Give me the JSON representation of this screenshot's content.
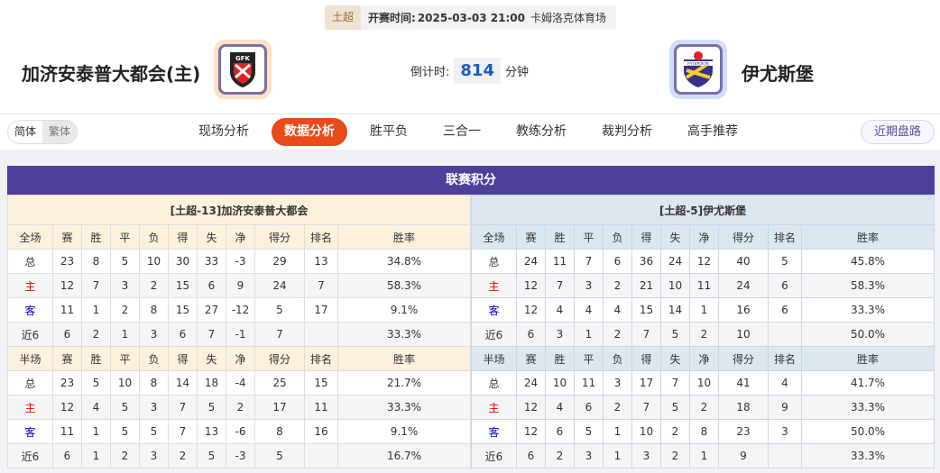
{
  "match": {
    "league": "土超",
    "time_label": "开赛时间:",
    "time": "2025-03-03 21:00",
    "venue": "卡姆洛克体育场"
  },
  "home": {
    "name": "加济安泰普大都会(主)",
    "logo_text": "GFK"
  },
  "away": {
    "name": "伊尤斯堡",
    "logo_text": "EYUPSPOR"
  },
  "countdown": {
    "label": "倒计时:",
    "value": "814",
    "unit": "分钟"
  },
  "lang": {
    "simplified": "简体",
    "traditional": "繁体"
  },
  "tabs": [
    "现场分析",
    "数据分析",
    "胜平负",
    "三合一",
    "教练分析",
    "裁判分析",
    "高手推荐"
  ],
  "active_tab": "数据分析",
  "recent_button": "近期盘路",
  "section_title": "联赛积分",
  "columns_full": [
    "全场",
    "赛",
    "胜",
    "平",
    "负",
    "得",
    "失",
    "净",
    "得分",
    "排名",
    "胜率"
  ],
  "columns_half": [
    "半场",
    "赛",
    "胜",
    "平",
    "负",
    "得",
    "失",
    "净",
    "得分",
    "排名",
    "胜率"
  ],
  "tables": [
    {
      "caption": "[土超-13]加济安泰普大都会",
      "full": [
        [
          "总",
          "23",
          "8",
          "5",
          "10",
          "30",
          "33",
          "-3",
          "29",
          "13",
          "34.8%"
        ],
        [
          "主",
          "12",
          "7",
          "3",
          "2",
          "15",
          "6",
          "9",
          "24",
          "7",
          "58.3%"
        ],
        [
          "客",
          "11",
          "1",
          "2",
          "8",
          "15",
          "27",
          "-12",
          "5",
          "17",
          "9.1%"
        ],
        [
          "近6",
          "6",
          "2",
          "1",
          "3",
          "6",
          "7",
          "-1",
          "7",
          "",
          "33.3%"
        ]
      ],
      "half": [
        [
          "总",
          "23",
          "5",
          "10",
          "8",
          "14",
          "18",
          "-4",
          "25",
          "15",
          "21.7%"
        ],
        [
          "主",
          "12",
          "4",
          "5",
          "3",
          "7",
          "5",
          "2",
          "17",
          "11",
          "33.3%"
        ],
        [
          "客",
          "11",
          "1",
          "5",
          "5",
          "7",
          "13",
          "-6",
          "8",
          "16",
          "9.1%"
        ],
        [
          "近6",
          "6",
          "1",
          "2",
          "3",
          "2",
          "5",
          "-3",
          "5",
          "",
          "16.7%"
        ]
      ]
    },
    {
      "caption": "[土超-5]伊尤斯堡",
      "full": [
        [
          "总",
          "24",
          "11",
          "7",
          "6",
          "36",
          "24",
          "12",
          "40",
          "5",
          "45.8%"
        ],
        [
          "主",
          "12",
          "7",
          "3",
          "2",
          "21",
          "10",
          "11",
          "24",
          "6",
          "58.3%"
        ],
        [
          "客",
          "12",
          "4",
          "4",
          "4",
          "15",
          "14",
          "1",
          "16",
          "6",
          "33.3%"
        ],
        [
          "近6",
          "6",
          "3",
          "1",
          "2",
          "7",
          "5",
          "2",
          "10",
          "",
          "50.0%"
        ]
      ],
      "half": [
        [
          "总",
          "24",
          "10",
          "11",
          "3",
          "17",
          "7",
          "10",
          "41",
          "4",
          "41.7%"
        ],
        [
          "主",
          "12",
          "4",
          "6",
          "2",
          "7",
          "5",
          "2",
          "18",
          "9",
          "33.3%"
        ],
        [
          "客",
          "12",
          "6",
          "5",
          "1",
          "10",
          "2",
          "8",
          "23",
          "3",
          "50.0%"
        ],
        [
          "近6",
          "6",
          "2",
          "3",
          "1",
          "3",
          "2",
          "1",
          "9",
          "",
          "33.3%"
        ]
      ]
    }
  ],
  "colors": {
    "accent": "#e84a1a",
    "title_bar": "#4f3f9b",
    "home_label": "#e00000",
    "away_label": "#0000cc"
  }
}
